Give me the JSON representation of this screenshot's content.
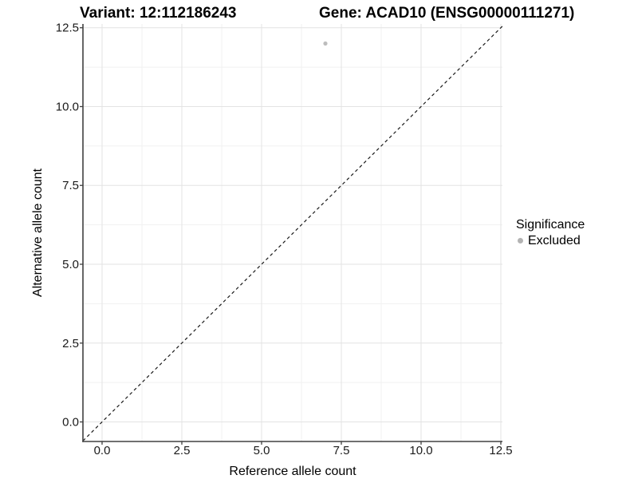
{
  "chart_data": {
    "type": "scatter",
    "title_left": "Variant: 12:112186243",
    "title_right": "Gene: ACAD10 (ENSG00000111271)",
    "xlabel": "Reference allele count",
    "ylabel": "Alternative allele count",
    "xlim": [
      -0.6,
      12.55
    ],
    "ylim": [
      -0.62,
      12.62
    ],
    "x_ticks": [
      0.0,
      2.5,
      5.0,
      7.5,
      10.0,
      12.5
    ],
    "y_ticks": [
      0.0,
      2.5,
      5.0,
      7.5,
      10.0,
      12.5
    ],
    "minor_ticks_x": [
      1.25,
      3.75,
      6.25,
      8.75,
      11.25
    ],
    "minor_ticks_y": [
      1.25,
      3.75,
      6.25,
      8.75,
      11.25
    ],
    "grid": true,
    "legend_position": "right",
    "reference_line": {
      "kind": "identity-abline",
      "slope": 1,
      "intercept": 0,
      "style": "dashed",
      "color": "#1a1a1a"
    },
    "series": [
      {
        "name": "Excluded",
        "color": "#bdbdbd",
        "point_radius": 2.6,
        "points": [
          {
            "x": 7,
            "y": 12
          }
        ]
      }
    ],
    "legend": {
      "title": "Significance",
      "items": [
        {
          "label": "Excluded",
          "color": "#b3b3b3"
        }
      ]
    },
    "colors": {
      "background": "#ffffff",
      "grid_major": "#e3e3e3",
      "grid_minor": "#f1f1f1",
      "axis": "#404040",
      "tick_text": "#1a1a1a"
    }
  }
}
